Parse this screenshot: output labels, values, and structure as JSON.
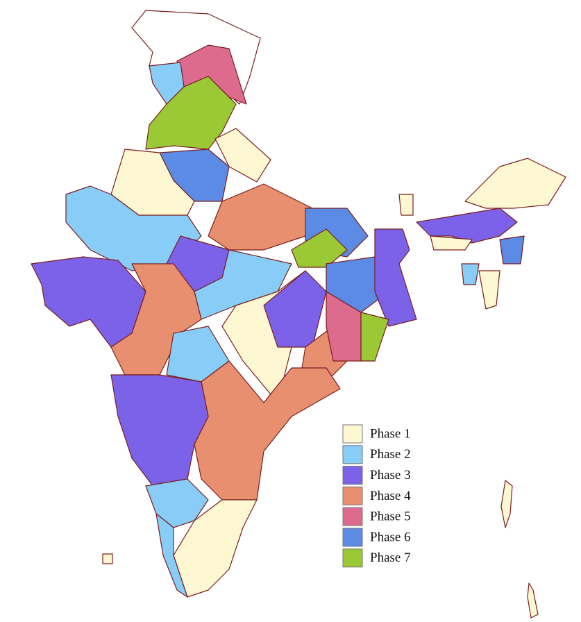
{
  "legend": {
    "items": [
      {
        "label": "Phase 1",
        "color": "#fdf8d2"
      },
      {
        "label": "Phase 2",
        "color": "#88cdf8"
      },
      {
        "label": "Phase 3",
        "color": "#7c62e8"
      },
      {
        "label": "Phase 4",
        "color": "#e88f70"
      },
      {
        "label": "Phase 5",
        "color": "#dc6b8e"
      },
      {
        "label": "Phase 6",
        "color": "#5c8be6"
      },
      {
        "label": "Phase 7",
        "color": "#9bc936"
      }
    ]
  }
}
